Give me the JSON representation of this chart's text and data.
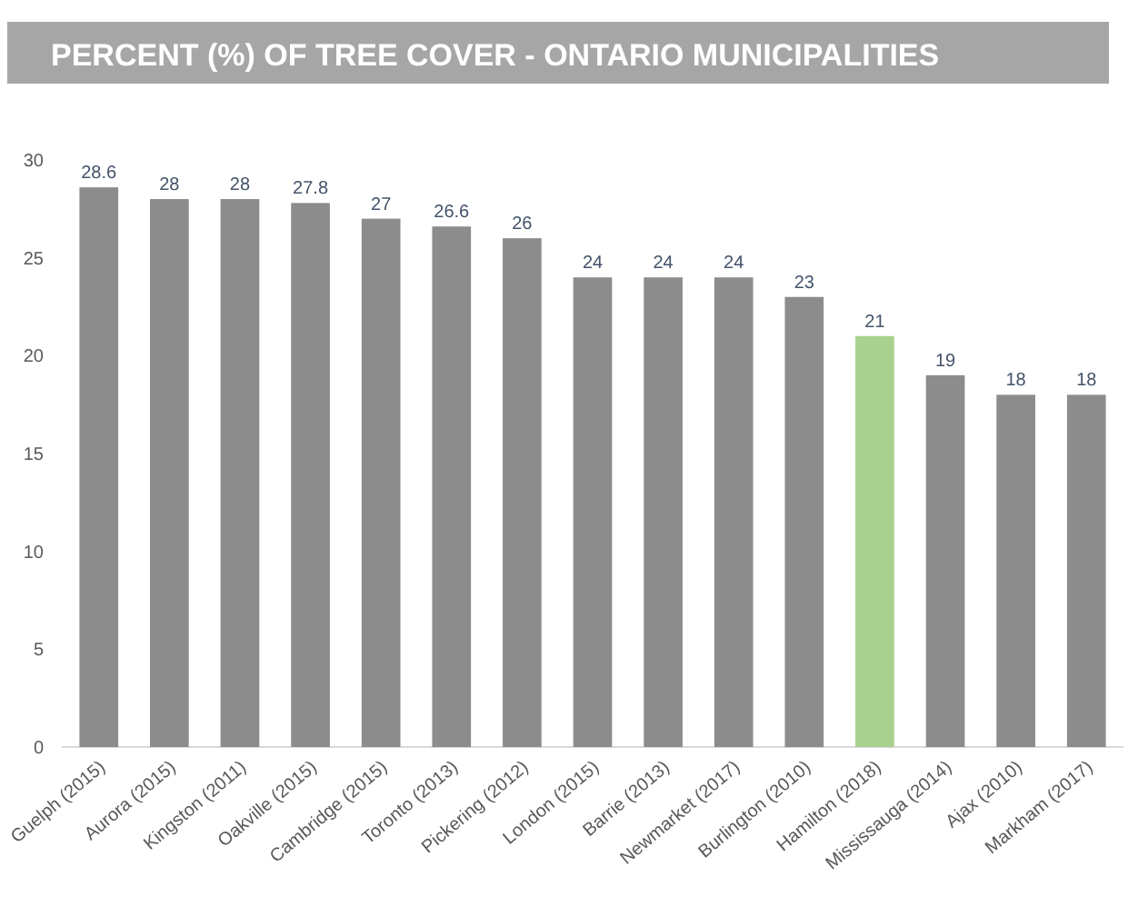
{
  "chart_data": {
    "type": "bar",
    "title": "PERCENT (%) OF TREE COVER - ONTARIO MUNICIPALITIES",
    "categories": [
      "Guelph (2015)",
      "Aurora (2015)",
      "Kingston (2011)",
      "Oakville (2015)",
      "Cambridge (2015)",
      "Toronto (2013)",
      "Pickering (2012)",
      "London (2015)",
      "Barrie (2013)",
      "Newmarket (2017)",
      "Burlington (2010)",
      "Hamilton (2018)",
      "Mississauga (2014)",
      "Ajax (2010)",
      "Markham (2017)"
    ],
    "values": [
      28.6,
      28,
      28,
      27.8,
      27,
      26.6,
      26,
      24,
      24,
      24,
      23,
      21,
      19,
      18,
      18
    ],
    "colors": [
      "#8c8c8c",
      "#8c8c8c",
      "#8c8c8c",
      "#8c8c8c",
      "#8c8c8c",
      "#8c8c8c",
      "#8c8c8c",
      "#8c8c8c",
      "#8c8c8c",
      "#8c8c8c",
      "#8c8c8c",
      "#a9d18e",
      "#8c8c8c",
      "#8c8c8c",
      "#8c8c8c"
    ],
    "ylim": [
      0,
      30
    ],
    "yticks": [
      0,
      5,
      10,
      15,
      20,
      25,
      30
    ],
    "data_labels": true
  }
}
